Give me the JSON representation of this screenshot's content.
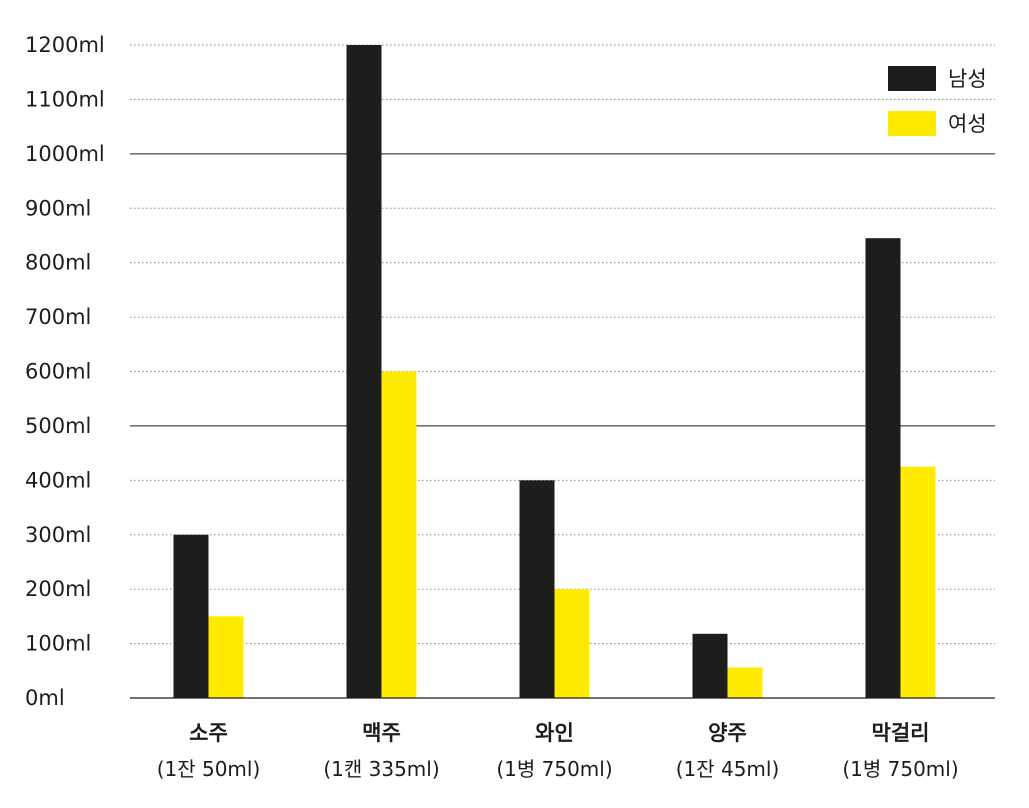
{
  "chart_data": {
    "type": "bar",
    "categories": [
      "소주",
      "맥주",
      "와인",
      "양주",
      "막걸리"
    ],
    "category_sublabels": [
      "(1잔 50ml)",
      "(1캔 335ml)",
      "(1병 750ml)",
      "(1잔 45ml)",
      "(1병 750ml)"
    ],
    "series": [
      {
        "name": "남성",
        "color": "#1d1d1b",
        "values": [
          300,
          1200,
          400,
          118,
          845
        ]
      },
      {
        "name": "여성",
        "color": "#ffeb00",
        "values": [
          150,
          600,
          200,
          56,
          425
        ]
      }
    ],
    "y_ticks": [
      0,
      100,
      200,
      300,
      400,
      500,
      600,
      700,
      800,
      900,
      1000,
      1100,
      1200
    ],
    "y_tick_labels": [
      "0ml",
      "100ml",
      "200ml",
      "300ml",
      "400ml",
      "500ml",
      "600ml",
      "700ml",
      "800ml",
      "900ml",
      "1000ml",
      "1100ml",
      "1200ml"
    ],
    "solid_gridlines": [
      500,
      1000
    ],
    "ylim": [
      0,
      1200
    ],
    "grid": true,
    "legend_position": "top-right",
    "title": "",
    "xlabel": "",
    "ylabel": ""
  }
}
